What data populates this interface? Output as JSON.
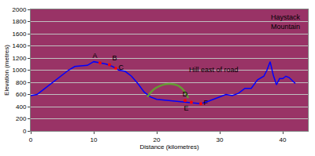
{
  "chart_data": {
    "type": "line",
    "x_label": "Distance (kilometres)",
    "y_label": "Elevation (metres)",
    "xlim": [
      0,
      44
    ],
    "xticks": [
      0,
      10,
      20,
      30,
      40
    ],
    "ylim": [
      0,
      2000
    ],
    "yticks": [
      0,
      200,
      400,
      600,
      800,
      1000,
      1200,
      1400,
      1600,
      1800,
      2000
    ],
    "grid": true,
    "series": [
      {
        "color": "#0000ff",
        "x": [
          0,
          1,
          2,
          3,
          4,
          5,
          6,
          7,
          8,
          9,
          10,
          11,
          12,
          12.5,
          13,
          14,
          15,
          16,
          17,
          18,
          19,
          20,
          21,
          22,
          23,
          24,
          25,
          26,
          27,
          28,
          29,
          30,
          31,
          32,
          33,
          34,
          35,
          36,
          37,
          37.5,
          38,
          38.5,
          39,
          39.5,
          40,
          40.5,
          41,
          42
        ],
        "values": [
          580,
          600,
          680,
          760,
          840,
          920,
          1000,
          1060,
          1070,
          1080,
          1140,
          1120,
          1100,
          1080,
          1060,
          1000,
          980,
          900,
          780,
          640,
          560,
          520,
          510,
          500,
          490,
          480,
          470,
          460,
          450,
          480,
          520,
          560,
          600,
          580,
          620,
          700,
          700,
          840,
          900,
          1000,
          1140,
          920,
          760,
          860,
          860,
          900,
          880,
          780
        ]
      },
      {
        "color": "#669933",
        "x": [
          18.5,
          19.5,
          20.5,
          21.5,
          22.5,
          23.5,
          24.5,
          25
        ],
        "values": [
          560,
          680,
          740,
          770,
          770,
          740,
          640,
          540
        ]
      }
    ],
    "points": {
      "labels": [
        "A",
        "B",
        "C",
        "D",
        "E",
        "F"
      ],
      "x": [
        11,
        12.5,
        13.5,
        24.5,
        25.5,
        27
      ],
      "values": [
        1120,
        1090,
        1030,
        500,
        470,
        450
      ],
      "color": "#ff0000"
    },
    "annotations": [
      {
        "text": "Hill east of road",
        "x": 29,
        "y": 1010
      },
      {
        "text": "Haystack Mountain",
        "x": 40.5,
        "y": 1800
      }
    ]
  }
}
